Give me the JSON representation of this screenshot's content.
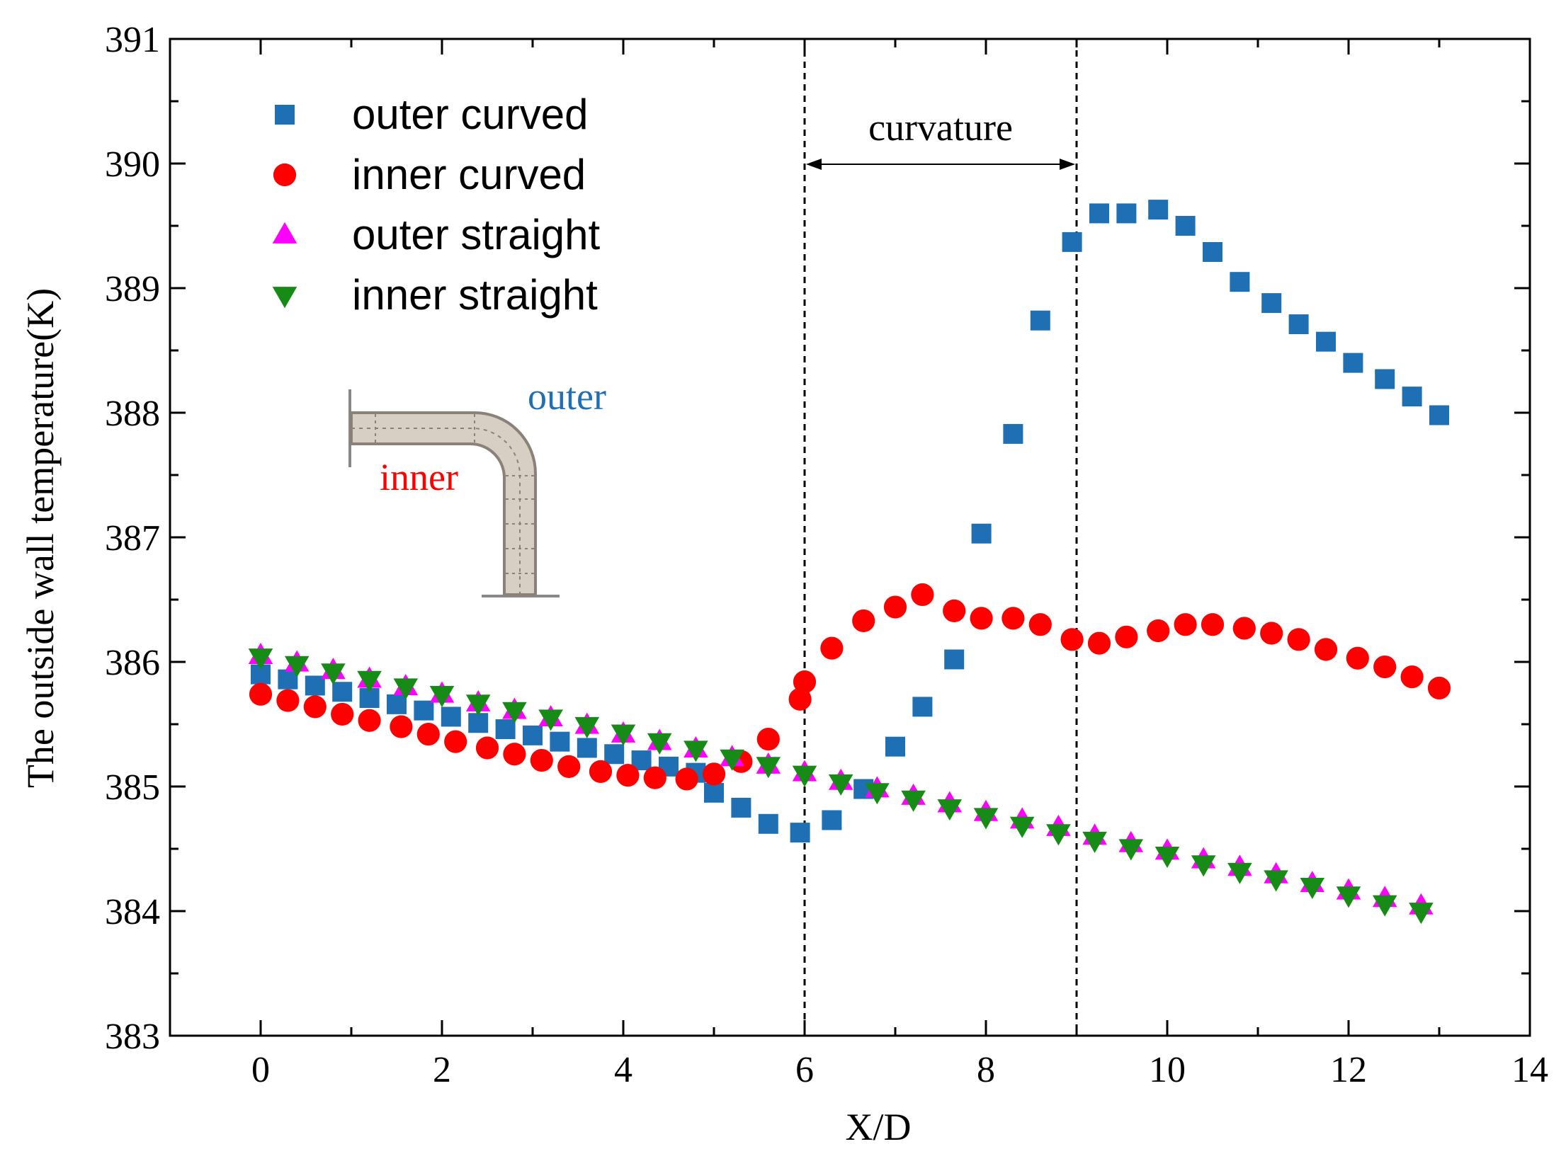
{
  "chart_data": {
    "type": "scatter",
    "title": "",
    "xlabel": "X/D",
    "ylabel": "The outside wall temperature(K)",
    "xlim": [
      -1,
      14
    ],
    "ylim": [
      383,
      391
    ],
    "xticks": [
      0,
      2,
      4,
      6,
      8,
      10,
      12,
      14
    ],
    "yticks": [
      383,
      384,
      385,
      386,
      387,
      388,
      389,
      390,
      391
    ],
    "xtick_labels": [
      "0",
      "2",
      "4",
      "6",
      "8",
      "10",
      "12",
      "14"
    ],
    "ytick_labels": [
      "383",
      "384",
      "385",
      "386",
      "387",
      "388",
      "389",
      "390",
      "391"
    ],
    "grid": false,
    "legend_position": "top-left",
    "series": [
      {
        "name": "outer curved",
        "marker": "square",
        "color": "#1f6fb4",
        "x": [
          0,
          0.3,
          0.6,
          0.9,
          1.2,
          1.5,
          1.8,
          2.1,
          2.4,
          2.7,
          3.0,
          3.3,
          3.6,
          3.9,
          4.2,
          4.5,
          4.8,
          5.0,
          5.3,
          5.6,
          5.95,
          6.3,
          6.65,
          7.0,
          7.3,
          7.65,
          7.95,
          8.3,
          8.6,
          8.95,
          9.25,
          9.55,
          9.9,
          10.2,
          10.5,
          10.8,
          11.15,
          11.45,
          11.75,
          12.05,
          12.4,
          12.7,
          13.0
        ],
        "y": [
          385.9,
          385.86,
          385.81,
          385.76,
          385.71,
          385.66,
          385.61,
          385.56,
          385.51,
          385.46,
          385.41,
          385.36,
          385.31,
          385.26,
          385.21,
          385.16,
          385.11,
          384.95,
          384.83,
          384.7,
          384.63,
          384.73,
          384.98,
          385.32,
          385.64,
          386.02,
          387.03,
          387.83,
          388.74,
          389.37,
          389.6,
          389.6,
          389.63,
          389.5,
          389.29,
          389.05,
          388.88,
          388.71,
          388.57,
          388.4,
          388.27,
          388.13,
          387.98
        ]
      },
      {
        "name": "inner curved",
        "marker": "circle",
        "color": "#ff0000",
        "x": [
          0,
          0.3,
          0.6,
          0.9,
          1.2,
          1.55,
          1.85,
          2.15,
          2.5,
          2.8,
          3.1,
          3.4,
          3.75,
          4.05,
          4.35,
          4.7,
          5.0,
          5.3,
          5.6,
          5.95,
          6.0,
          6.3,
          6.65,
          7.0,
          7.3,
          7.65,
          7.95,
          8.3,
          8.6,
          8.95,
          9.25,
          9.55,
          9.9,
          10.2,
          10.5,
          10.85,
          11.15,
          11.45,
          11.75,
          12.1,
          12.4,
          12.7,
          13.0
        ],
        "y": [
          385.74,
          385.69,
          385.64,
          385.58,
          385.53,
          385.48,
          385.42,
          385.36,
          385.31,
          385.26,
          385.21,
          385.16,
          385.12,
          385.09,
          385.07,
          385.06,
          385.1,
          385.2,
          385.38,
          385.7,
          385.84,
          386.11,
          386.33,
          386.44,
          386.54,
          386.41,
          386.35,
          386.35,
          386.3,
          386.18,
          386.15,
          386.2,
          386.25,
          386.3,
          386.3,
          386.27,
          386.23,
          386.18,
          386.1,
          386.03,
          385.96,
          385.88,
          385.79
        ]
      },
      {
        "name": "outer straight",
        "marker": "triangle-up",
        "color": "#ff00ff",
        "x": [
          0,
          0.4,
          0.8,
          1.2,
          1.6,
          2.0,
          2.4,
          2.8,
          3.2,
          3.6,
          4.0,
          4.4,
          4.8,
          5.2,
          5.6,
          6.0,
          6.4,
          6.8,
          7.2,
          7.6,
          8.0,
          8.4,
          8.8,
          9.2,
          9.6,
          10.0,
          10.4,
          10.8,
          11.2,
          11.6,
          12.0,
          12.4,
          12.8
        ],
        "y": [
          386.05,
          385.99,
          385.93,
          385.86,
          385.8,
          385.74,
          385.67,
          385.61,
          385.55,
          385.49,
          385.42,
          385.36,
          385.3,
          385.23,
          385.17,
          385.11,
          385.04,
          384.98,
          384.92,
          384.86,
          384.79,
          384.73,
          384.67,
          384.6,
          384.54,
          384.48,
          384.41,
          384.35,
          384.29,
          384.22,
          384.16,
          384.1,
          384.04
        ]
      },
      {
        "name": "inner straight",
        "marker": "triangle-down",
        "color": "#168c16",
        "x": [
          0,
          0.4,
          0.8,
          1.2,
          1.6,
          2.0,
          2.4,
          2.8,
          3.2,
          3.6,
          4.0,
          4.4,
          4.8,
          5.2,
          5.6,
          6.0,
          6.4,
          6.8,
          7.2,
          7.6,
          8.0,
          8.4,
          8.8,
          9.2,
          9.6,
          10.0,
          10.4,
          10.8,
          11.2,
          11.6,
          12.0,
          12.4,
          12.8
        ],
        "y": [
          386.04,
          385.98,
          385.92,
          385.86,
          385.8,
          385.74,
          385.67,
          385.61,
          385.55,
          385.49,
          385.43,
          385.36,
          385.3,
          385.23,
          385.17,
          385.1,
          385.03,
          384.96,
          384.9,
          384.83,
          384.76,
          384.69,
          384.63,
          384.57,
          384.51,
          384.45,
          384.38,
          384.32,
          384.26,
          384.2,
          384.13,
          384.06,
          384.0
        ]
      }
    ],
    "annotations": {
      "curvature_label": "curvature",
      "curvature_start": 6,
      "curvature_end": 9,
      "outer_label": "outer",
      "outer_color": "#1f6fb4",
      "inner_label": "inner",
      "inner_color": "#ff0000",
      "pipe_color": "#d8cfc4"
    }
  }
}
